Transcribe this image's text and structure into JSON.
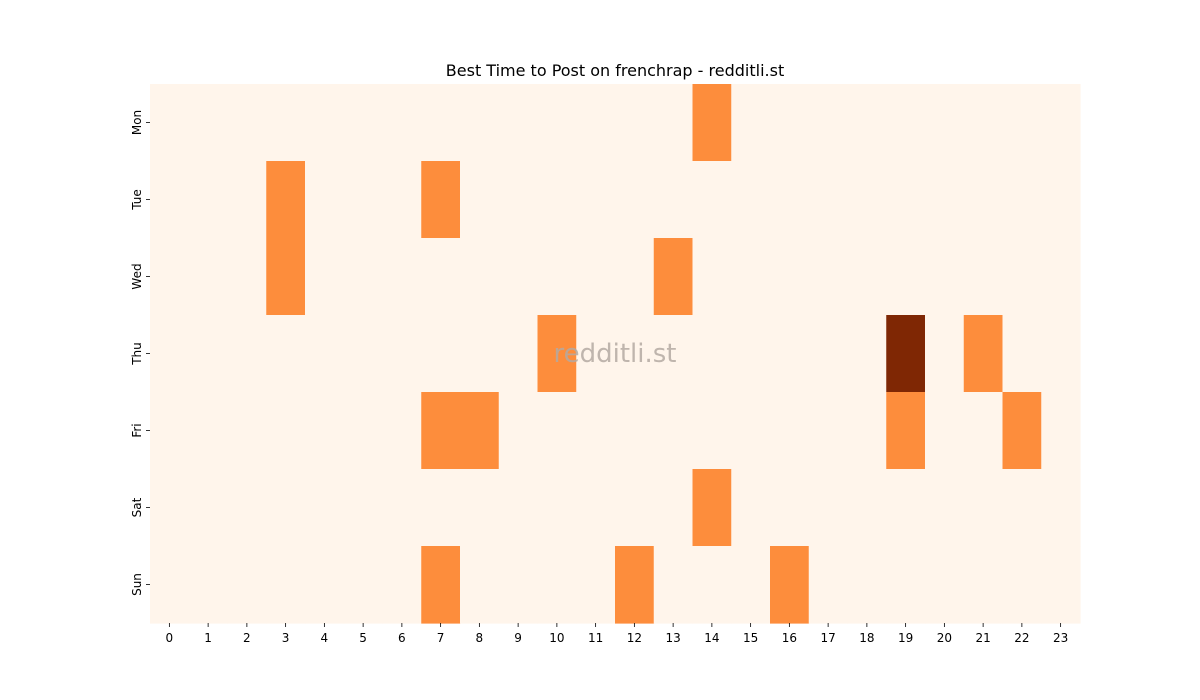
{
  "chart_data": {
    "type": "heatmap",
    "title": "Best Time to Post on frenchrap - redditli.st",
    "watermark": "redditli.st",
    "x_categories": [
      "0",
      "1",
      "2",
      "3",
      "4",
      "5",
      "6",
      "7",
      "8",
      "9",
      "10",
      "11",
      "12",
      "13",
      "14",
      "15",
      "16",
      "17",
      "18",
      "19",
      "20",
      "21",
      "22",
      "23"
    ],
    "y_categories": [
      "Mon",
      "Tue",
      "Wed",
      "Thu",
      "Fri",
      "Sat",
      "Sun"
    ],
    "values": [
      [
        0,
        0,
        0,
        0,
        0,
        0,
        0,
        0,
        0,
        0,
        0,
        0,
        0,
        0,
        1,
        0,
        0,
        0,
        0,
        0,
        0,
        0,
        0,
        0
      ],
      [
        0,
        0,
        0,
        1,
        0,
        0,
        0,
        1,
        0,
        0,
        0,
        0,
        0,
        0,
        0,
        0,
        0,
        0,
        0,
        0,
        0,
        0,
        0,
        0
      ],
      [
        0,
        0,
        0,
        1,
        0,
        0,
        0,
        0,
        0,
        0,
        0,
        0,
        0,
        1,
        0,
        0,
        0,
        0,
        0,
        0,
        0,
        0,
        0,
        0
      ],
      [
        0,
        0,
        0,
        0,
        0,
        0,
        0,
        0,
        0,
        0,
        1,
        0,
        0,
        0,
        0,
        0,
        0,
        0,
        0,
        2,
        0,
        1,
        0,
        0
      ],
      [
        0,
        0,
        0,
        0,
        0,
        0,
        0,
        1,
        1,
        0,
        0,
        0,
        0,
        0,
        0,
        0,
        0,
        0,
        0,
        1,
        0,
        0,
        1,
        0
      ],
      [
        0,
        0,
        0,
        0,
        0,
        0,
        0,
        0,
        0,
        0,
        0,
        0,
        0,
        0,
        1,
        0,
        0,
        0,
        0,
        0,
        0,
        0,
        0,
        0
      ],
      [
        0,
        0,
        0,
        0,
        0,
        0,
        0,
        1,
        0,
        0,
        0,
        0,
        1,
        0,
        0,
        0,
        1,
        0,
        0,
        0,
        0,
        0,
        0,
        0
      ]
    ],
    "value_range": [
      0,
      2
    ],
    "colormap": [
      "#fff5eb",
      "#fd8d3c",
      "#7f2704"
    ],
    "grid": false,
    "legend": "none"
  }
}
